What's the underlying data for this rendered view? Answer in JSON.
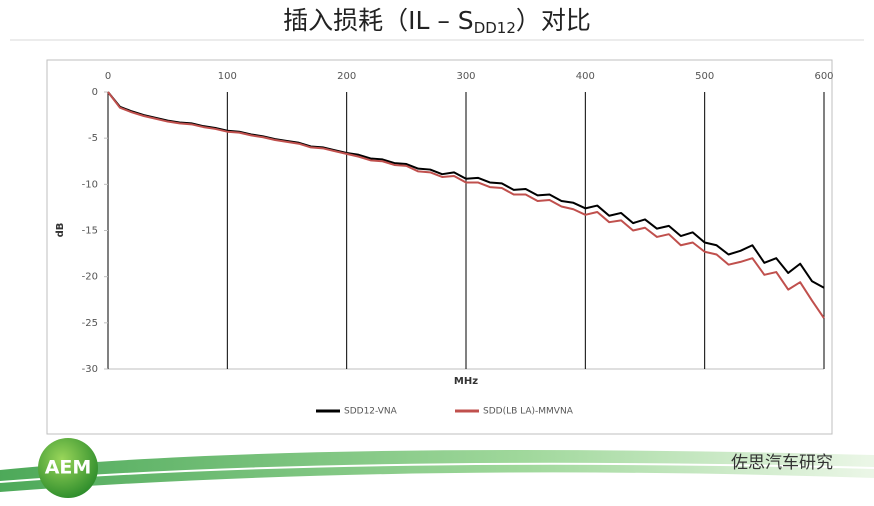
{
  "chart_data": {
    "type": "line",
    "title": {
      "main": "插入损耗（IL – S",
      "sub": "DD12",
      "end": "）对比"
    },
    "x_label": "MHz",
    "y_label": "dB",
    "x": [
      0,
      10,
      20,
      30,
      40,
      50,
      60,
      70,
      80,
      90,
      100,
      110,
      120,
      130,
      140,
      150,
      160,
      170,
      180,
      190,
      200,
      210,
      220,
      230,
      240,
      250,
      260,
      270,
      280,
      290,
      300,
      310,
      320,
      330,
      340,
      350,
      360,
      370,
      380,
      390,
      400,
      410,
      420,
      430,
      440,
      450,
      460,
      470,
      480,
      490,
      500,
      510,
      520,
      530,
      540,
      550,
      560,
      570,
      580,
      590,
      600
    ],
    "series": [
      {
        "name": "SDD12-VNA",
        "color": "#000000",
        "values": [
          0,
          -1.6,
          -2.1,
          -2.5,
          -2.8,
          -3.1,
          -3.3,
          -3.4,
          -3.7,
          -3.9,
          -4.2,
          -4.3,
          -4.6,
          -4.8,
          -5.1,
          -5.3,
          -5.5,
          -5.9,
          -6.0,
          -6.3,
          -6.6,
          -6.8,
          -7.2,
          -7.3,
          -7.7,
          -7.8,
          -8.3,
          -8.4,
          -8.9,
          -8.7,
          -9.4,
          -9.3,
          -9.8,
          -9.9,
          -10.6,
          -10.5,
          -11.2,
          -11.1,
          -11.8,
          -12.0,
          -12.6,
          -12.3,
          -13.4,
          -13.1,
          -14.2,
          -13.8,
          -14.8,
          -14.5,
          -15.6,
          -15.2,
          -16.3,
          -16.6,
          -17.6,
          -17.2,
          -16.6,
          -18.5,
          -18.0,
          -19.6,
          -18.6,
          -20.5,
          -21.2
        ]
      },
      {
        "name": "SDD(LB LA)-MMVNA",
        "color": "#c0504d",
        "values": [
          0,
          -1.7,
          -2.2,
          -2.6,
          -2.9,
          -3.2,
          -3.4,
          -3.5,
          -3.8,
          -4.0,
          -4.3,
          -4.4,
          -4.7,
          -4.9,
          -5.2,
          -5.4,
          -5.6,
          -6.0,
          -6.1,
          -6.4,
          -6.7,
          -7.0,
          -7.4,
          -7.5,
          -7.9,
          -8.0,
          -8.6,
          -8.7,
          -9.2,
          -9.1,
          -9.8,
          -9.8,
          -10.3,
          -10.4,
          -11.1,
          -11.1,
          -11.8,
          -11.7,
          -12.4,
          -12.7,
          -13.3,
          -13.0,
          -14.1,
          -13.9,
          -15.0,
          -14.7,
          -15.7,
          -15.4,
          -16.6,
          -16.3,
          -17.3,
          -17.6,
          -18.7,
          -18.4,
          -18.0,
          -19.8,
          -19.5,
          -21.4,
          -20.6,
          -22.6,
          -24.5
        ]
      }
    ],
    "xlim": [
      0,
      600
    ],
    "xticks": [
      0,
      100,
      200,
      300,
      400,
      500,
      600
    ],
    "ylim": [
      -30,
      0
    ],
    "yticks": [
      0,
      -5,
      -10,
      -15,
      -20,
      -25,
      -30
    ],
    "grid": "x",
    "legend": "bottom"
  },
  "branding": {
    "logo": "AEM",
    "watermark": "佐思汽车研究"
  }
}
